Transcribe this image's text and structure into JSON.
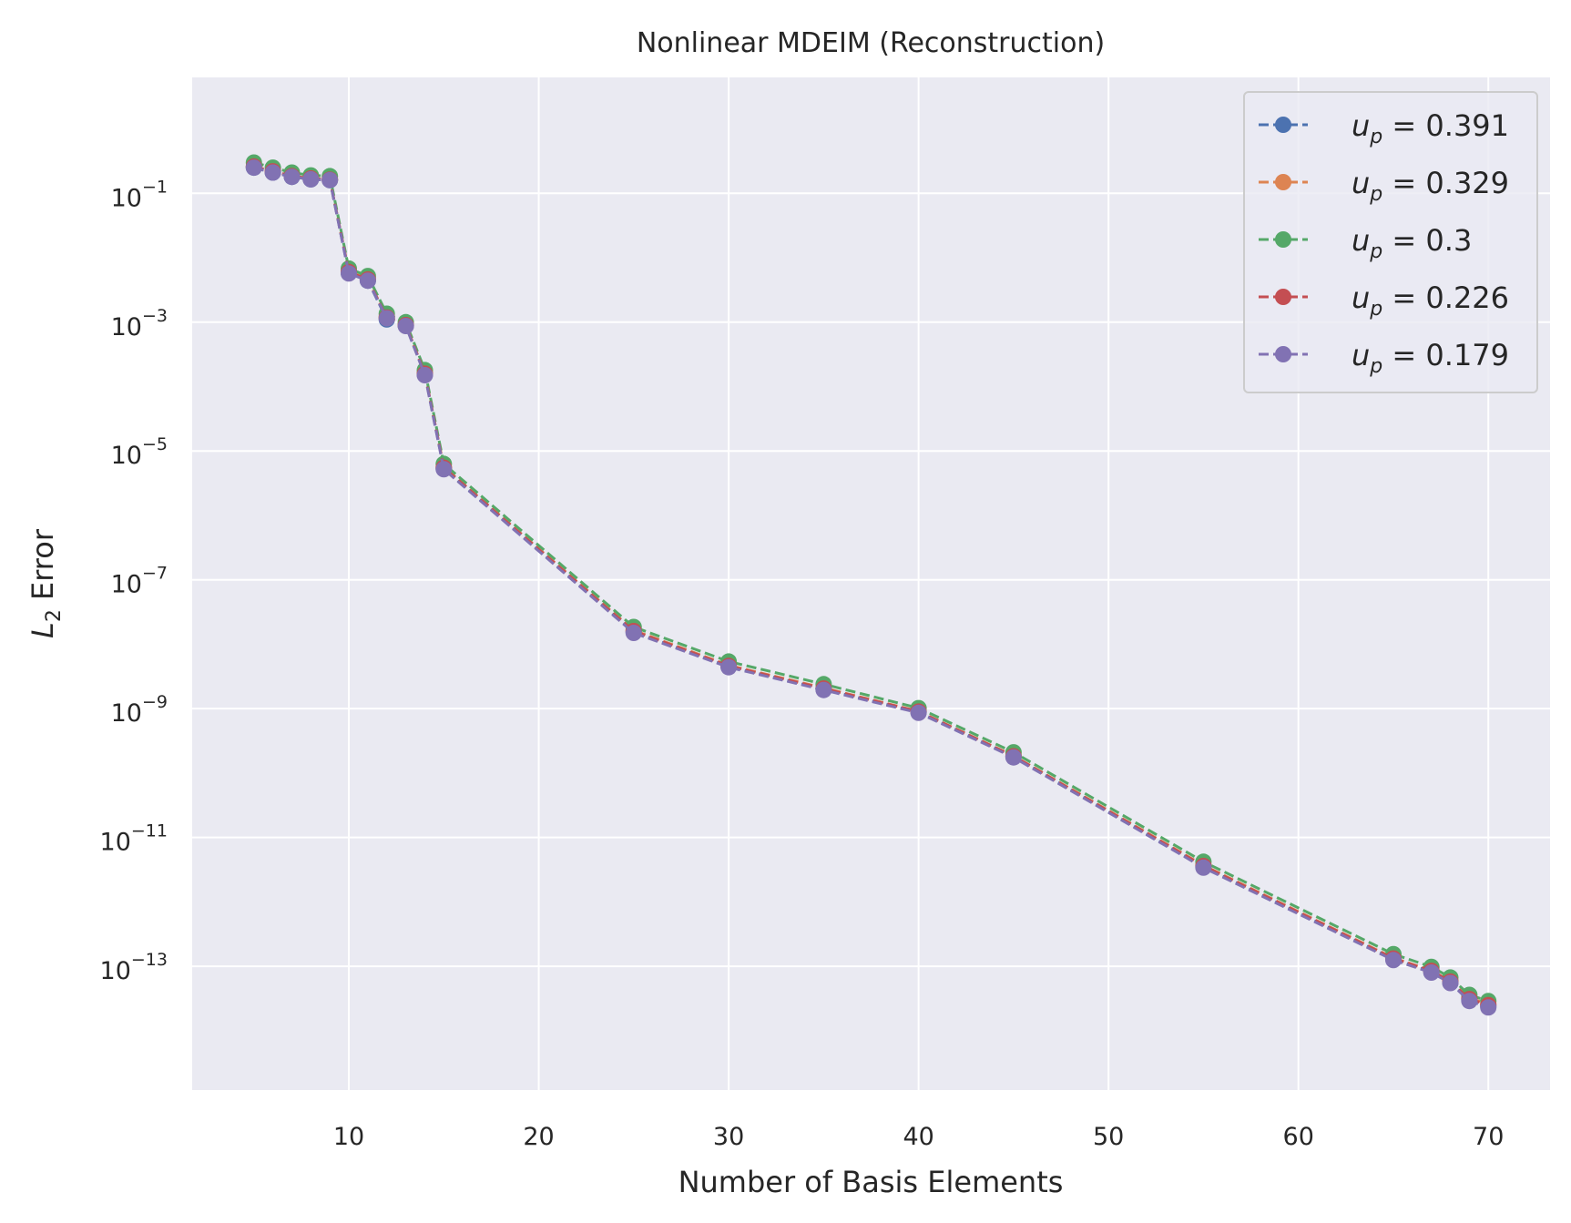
{
  "chart_data": {
    "type": "line",
    "title": "Nonlinear MDEIM (Reconstruction)",
    "xlabel": "Number of Basis Elements",
    "ylabel": {
      "symbol": "L",
      "subscript": "2",
      "rest": " Error"
    },
    "x_scale": "linear",
    "y_scale": "log",
    "xlim": [
      1.75,
      73.25
    ],
    "ylim": [
      1.2e-15,
      6.3
    ],
    "xticks": [
      10,
      20,
      30,
      40,
      50,
      60,
      70
    ],
    "xtick_labels": [
      "10",
      "20",
      "30",
      "40",
      "50",
      "60",
      "70"
    ],
    "yticks": [
      {
        "value": 0.1,
        "base": "10",
        "exp": "−1"
      },
      {
        "value": 0.001,
        "base": "10",
        "exp": "−3"
      },
      {
        "value": 1e-05,
        "base": "10",
        "exp": "−5"
      },
      {
        "value": 1e-07,
        "base": "10",
        "exp": "−7"
      },
      {
        "value": 1e-09,
        "base": "10",
        "exp": "−9"
      },
      {
        "value": 1e-11,
        "base": "10",
        "exp": "−11"
      },
      {
        "value": 1e-13,
        "base": "10",
        "exp": "−13"
      }
    ],
    "grid": true,
    "legend_position": "top-right",
    "x": [
      5,
      6,
      7,
      8,
      9,
      10,
      11,
      12,
      13,
      14,
      15,
      25,
      30,
      35,
      40,
      45,
      55,
      65,
      67,
      68,
      69,
      70
    ],
    "series": [
      {
        "name": {
          "var": "u",
          "sub": "p",
          "value": " = 0.391"
        },
        "color": "#4c72b0",
        "values": [
          0.25,
          0.21,
          0.18,
          0.165,
          0.16,
          0.0058,
          0.0044,
          0.0011,
          0.00088,
          0.000155,
          5.3e-06,
          1.55e-08,
          4.5e-09,
          2e-09,
          8.8e-10,
          1.8e-10,
          3.5e-12,
          1.3e-13,
          8.2e-14,
          5.6e-14,
          3e-14,
          2.4e-14
        ]
      },
      {
        "name": {
          "var": "u",
          "sub": "p",
          "value": " = 0.329"
        },
        "color": "#dd8452",
        "values": [
          0.26,
          0.22,
          0.185,
          0.17,
          0.165,
          0.0061,
          0.0047,
          0.0012,
          0.00091,
          0.00016,
          5.6e-06,
          1.65e-08,
          4.7e-09,
          2.1e-09,
          9.1e-10,
          1.85e-10,
          3.7e-12,
          1.35e-13,
          8.6e-14,
          5.9e-14,
          3.2e-14,
          2.6e-14
        ]
      },
      {
        "name": {
          "var": "u",
          "sub": "p",
          "value": " = 0.3"
        },
        "color": "#55a868",
        "values": [
          0.3,
          0.25,
          0.21,
          0.19,
          0.185,
          0.0068,
          0.0052,
          0.00135,
          0.001,
          0.00018,
          6.3e-06,
          1.85e-08,
          5.4e-09,
          2.4e-09,
          1.02e-09,
          2.1e-10,
          4.2e-12,
          1.55e-13,
          9.8e-14,
          6.7e-14,
          3.6e-14,
          2.9e-14
        ]
      },
      {
        "name": {
          "var": "u",
          "sub": "p",
          "value": " = 0.226"
        },
        "color": "#c44e52",
        "values": [
          0.26,
          0.22,
          0.185,
          0.17,
          0.163,
          0.006,
          0.0046,
          0.00118,
          0.0009,
          0.000158,
          5.5e-06,
          1.6e-08,
          4.6e-09,
          2.05e-09,
          9e-10,
          1.82e-10,
          3.6e-12,
          1.32e-13,
          8.5e-14,
          5.8e-14,
          3.1e-14,
          2.5e-14
        ]
      },
      {
        "name": {
          "var": "u",
          "sub": "p",
          "value": " = 0.179"
        },
        "color": "#8172b3",
        "values": [
          0.25,
          0.21,
          0.18,
          0.165,
          0.16,
          0.0057,
          0.0044,
          0.00115,
          0.00087,
          0.00015,
          5.2e-06,
          1.5e-08,
          4.4e-09,
          1.95e-09,
          8.6e-10,
          1.75e-10,
          3.4e-12,
          1.25e-13,
          8e-14,
          5.5e-14,
          2.9e-14,
          2.3e-14
        ]
      }
    ]
  }
}
